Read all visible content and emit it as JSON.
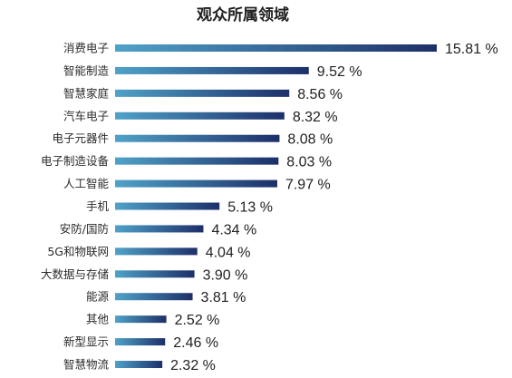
{
  "chart_data": {
    "type": "bar",
    "orientation": "horizontal",
    "title": "观众所属领域",
    "categories": [
      "消费电子",
      "智能制造",
      "智慧家庭",
      "汽车电子",
      "电子元器件",
      "电子制造设备",
      "人工智能",
      "手机",
      "安防/国防",
      "5G和物联网",
      "大数据与存储",
      "能源",
      "其他",
      "新型显示",
      "智慧物流"
    ],
    "values": [
      15.81,
      9.52,
      8.56,
      8.32,
      8.08,
      8.03,
      7.97,
      5.13,
      4.34,
      4.04,
      3.9,
      3.81,
      2.52,
      2.46,
      2.32
    ],
    "value_labels": [
      "15.81 %",
      "9.52 %",
      "8.56 %",
      "8.32 %",
      "8.08 %",
      "8.03 %",
      "7.97 %",
      "5.13 %",
      "4.34 %",
      "4.04 %",
      "3.90 %",
      "3.81 %",
      "2.52 %",
      "2.46 %",
      "2.32 %"
    ],
    "xlim": [
      0,
      15.81
    ],
    "grid": false,
    "legend": "none",
    "colors": {
      "bar_start": "#4fa2c8",
      "bar_end": "#1d2f69",
      "text": "#222222"
    }
  }
}
